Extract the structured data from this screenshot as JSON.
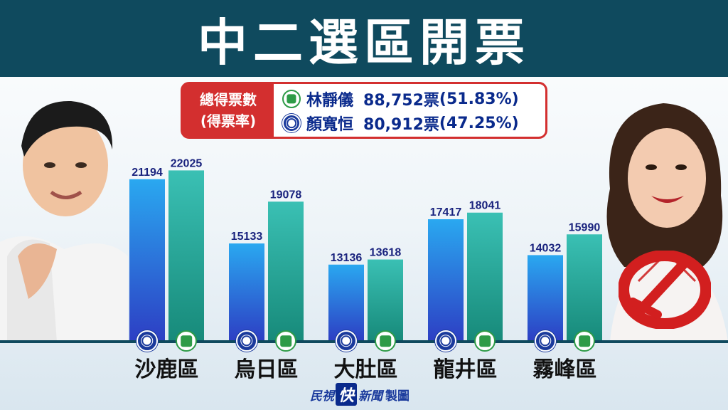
{
  "title": "中二選區開票",
  "summary": {
    "label_line1": "總得票數",
    "label_line2": "(得票率)",
    "candidates": [
      {
        "party_icon": "dpp-icon",
        "name": "林靜儀",
        "votes": "88,752票",
        "pct": "(51.83%)"
      },
      {
        "party_icon": "kmt-icon",
        "name": "顏寬恒",
        "votes": "80,912票",
        "pct": "(47.25%)"
      }
    ]
  },
  "chart_data": {
    "type": "bar",
    "categories": [
      "沙鹿區",
      "烏日區",
      "大肚區",
      "龍井區",
      "霧峰區"
    ],
    "series": [
      {
        "party": "kmt",
        "values": [
          21194,
          15133,
          13136,
          17417,
          14032
        ],
        "color": "#2f6fe0"
      },
      {
        "party": "dpp",
        "values": [
          22025,
          19078,
          13618,
          18041,
          15990
        ],
        "color": "#1fa89a"
      }
    ],
    "ylim": [
      0,
      24000
    ],
    "legend_icons": [
      "kmt-icon",
      "dpp-icon"
    ]
  },
  "colors": {
    "title_bar": "#0f4a5e",
    "summary_border": "#d32f2f",
    "summary_text": "#0a2a8c",
    "label_text": "#1a237e"
  },
  "footer": {
    "part1": "民視",
    "part2": "快",
    "part3": "新聞",
    "part4": "製圖"
  }
}
